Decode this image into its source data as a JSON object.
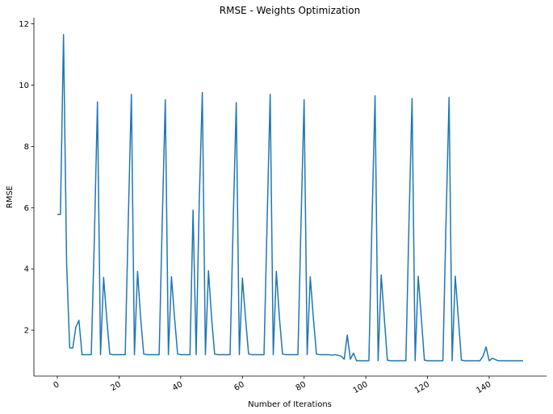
{
  "chart_data": {
    "type": "line",
    "title": "RMSE - Weights Optimization",
    "xlabel": "Number of Iterations",
    "ylabel": "RMSE",
    "xlim": [
      -7.6,
      158.6
    ],
    "ylim": [
      0.5,
      12.2
    ],
    "xticks": [
      0,
      20,
      40,
      60,
      80,
      100,
      120,
      140
    ],
    "xtick_labels": [
      "0",
      "20",
      "40",
      "60",
      "80",
      "100",
      "120",
      "140"
    ],
    "yticks": [
      2,
      4,
      6,
      8,
      10,
      12
    ],
    "ytick_labels": [
      "2",
      "4",
      "6",
      "8",
      "10",
      "12"
    ],
    "xtick_rotation": 30,
    "grid": false,
    "color": "#1f77b4",
    "series": [
      {
        "x": [
          0,
          1,
          2,
          3,
          4,
          5,
          6,
          7,
          8,
          9,
          10,
          11,
          12,
          13,
          14,
          15,
          16,
          17,
          18,
          19,
          20,
          21,
          22,
          23,
          24,
          25,
          26,
          27,
          28,
          29,
          30,
          31,
          32,
          33,
          34,
          35,
          36,
          37,
          38,
          39,
          40,
          41,
          42,
          43,
          44,
          45,
          46,
          47,
          48,
          49,
          50,
          51,
          52,
          53,
          54,
          55,
          56,
          57,
          58,
          59,
          60,
          61,
          62,
          63,
          64,
          65,
          66,
          67,
          68,
          69,
          70,
          71,
          72,
          73,
          74,
          75,
          76,
          77,
          78,
          79,
          80,
          81,
          82,
          83,
          84,
          85,
          86,
          87,
          88,
          89,
          90,
          91,
          92,
          93,
          94,
          95,
          96,
          97,
          98,
          99,
          100,
          101,
          102,
          103,
          104,
          105,
          106,
          107,
          108,
          109,
          110,
          111,
          112,
          113,
          114,
          115,
          116,
          117,
          118,
          119,
          120,
          121,
          122,
          123,
          124,
          125,
          126,
          127,
          128,
          129,
          130,
          131,
          132,
          133,
          134,
          135,
          136,
          137,
          138,
          139,
          140,
          141,
          142,
          143,
          144,
          145,
          146,
          147,
          148,
          149,
          150,
          151
        ],
        "y": [
          5.78,
          5.78,
          11.65,
          4.2,
          1.42,
          1.42,
          2.1,
          2.32,
          1.2,
          1.2,
          1.2,
          1.2,
          5.0,
          9.45,
          1.2,
          3.72,
          2.4,
          1.22,
          1.2,
          1.2,
          1.2,
          1.2,
          1.2,
          5.6,
          9.7,
          1.2,
          3.92,
          2.4,
          1.22,
          1.2,
          1.2,
          1.2,
          1.2,
          1.2,
          5.5,
          9.52,
          1.2,
          3.74,
          2.4,
          1.22,
          1.2,
          1.2,
          1.2,
          1.2,
          5.92,
          1.2,
          6.2,
          9.76,
          1.2,
          3.94,
          2.4,
          1.22,
          1.2,
          1.2,
          1.2,
          1.2,
          1.2,
          5.5,
          9.43,
          1.2,
          3.7,
          2.4,
          1.22,
          1.2,
          1.2,
          1.2,
          1.2,
          1.2,
          5.5,
          9.7,
          1.2,
          3.92,
          2.4,
          1.22,
          1.2,
          1.2,
          1.2,
          1.2,
          1.2,
          5.5,
          9.52,
          1.2,
          3.74,
          2.4,
          1.22,
          1.2,
          1.2,
          1.2,
          1.2,
          1.18,
          1.2,
          1.18,
          1.15,
          1.05,
          1.84,
          1.05,
          1.25,
          1.0,
          1.0,
          1.0,
          1.0,
          1.0,
          5.5,
          9.65,
          1.0,
          3.8,
          2.4,
          1.02,
          1.0,
          1.0,
          1.0,
          1.0,
          1.0,
          1.0,
          5.5,
          9.56,
          1.0,
          3.76,
          2.4,
          1.02,
          1.0,
          1.0,
          1.0,
          1.0,
          1.0,
          1.0,
          5.5,
          9.6,
          1.0,
          3.76,
          2.4,
          1.02,
          1.0,
          1.0,
          1.0,
          1.0,
          1.0,
          1.0,
          1.15,
          1.45,
          1.0,
          1.08,
          1.04,
          1.0,
          1.0,
          1.0,
          1.0,
          1.0,
          1.0,
          1.0,
          1.0,
          1.0
        ]
      }
    ]
  }
}
